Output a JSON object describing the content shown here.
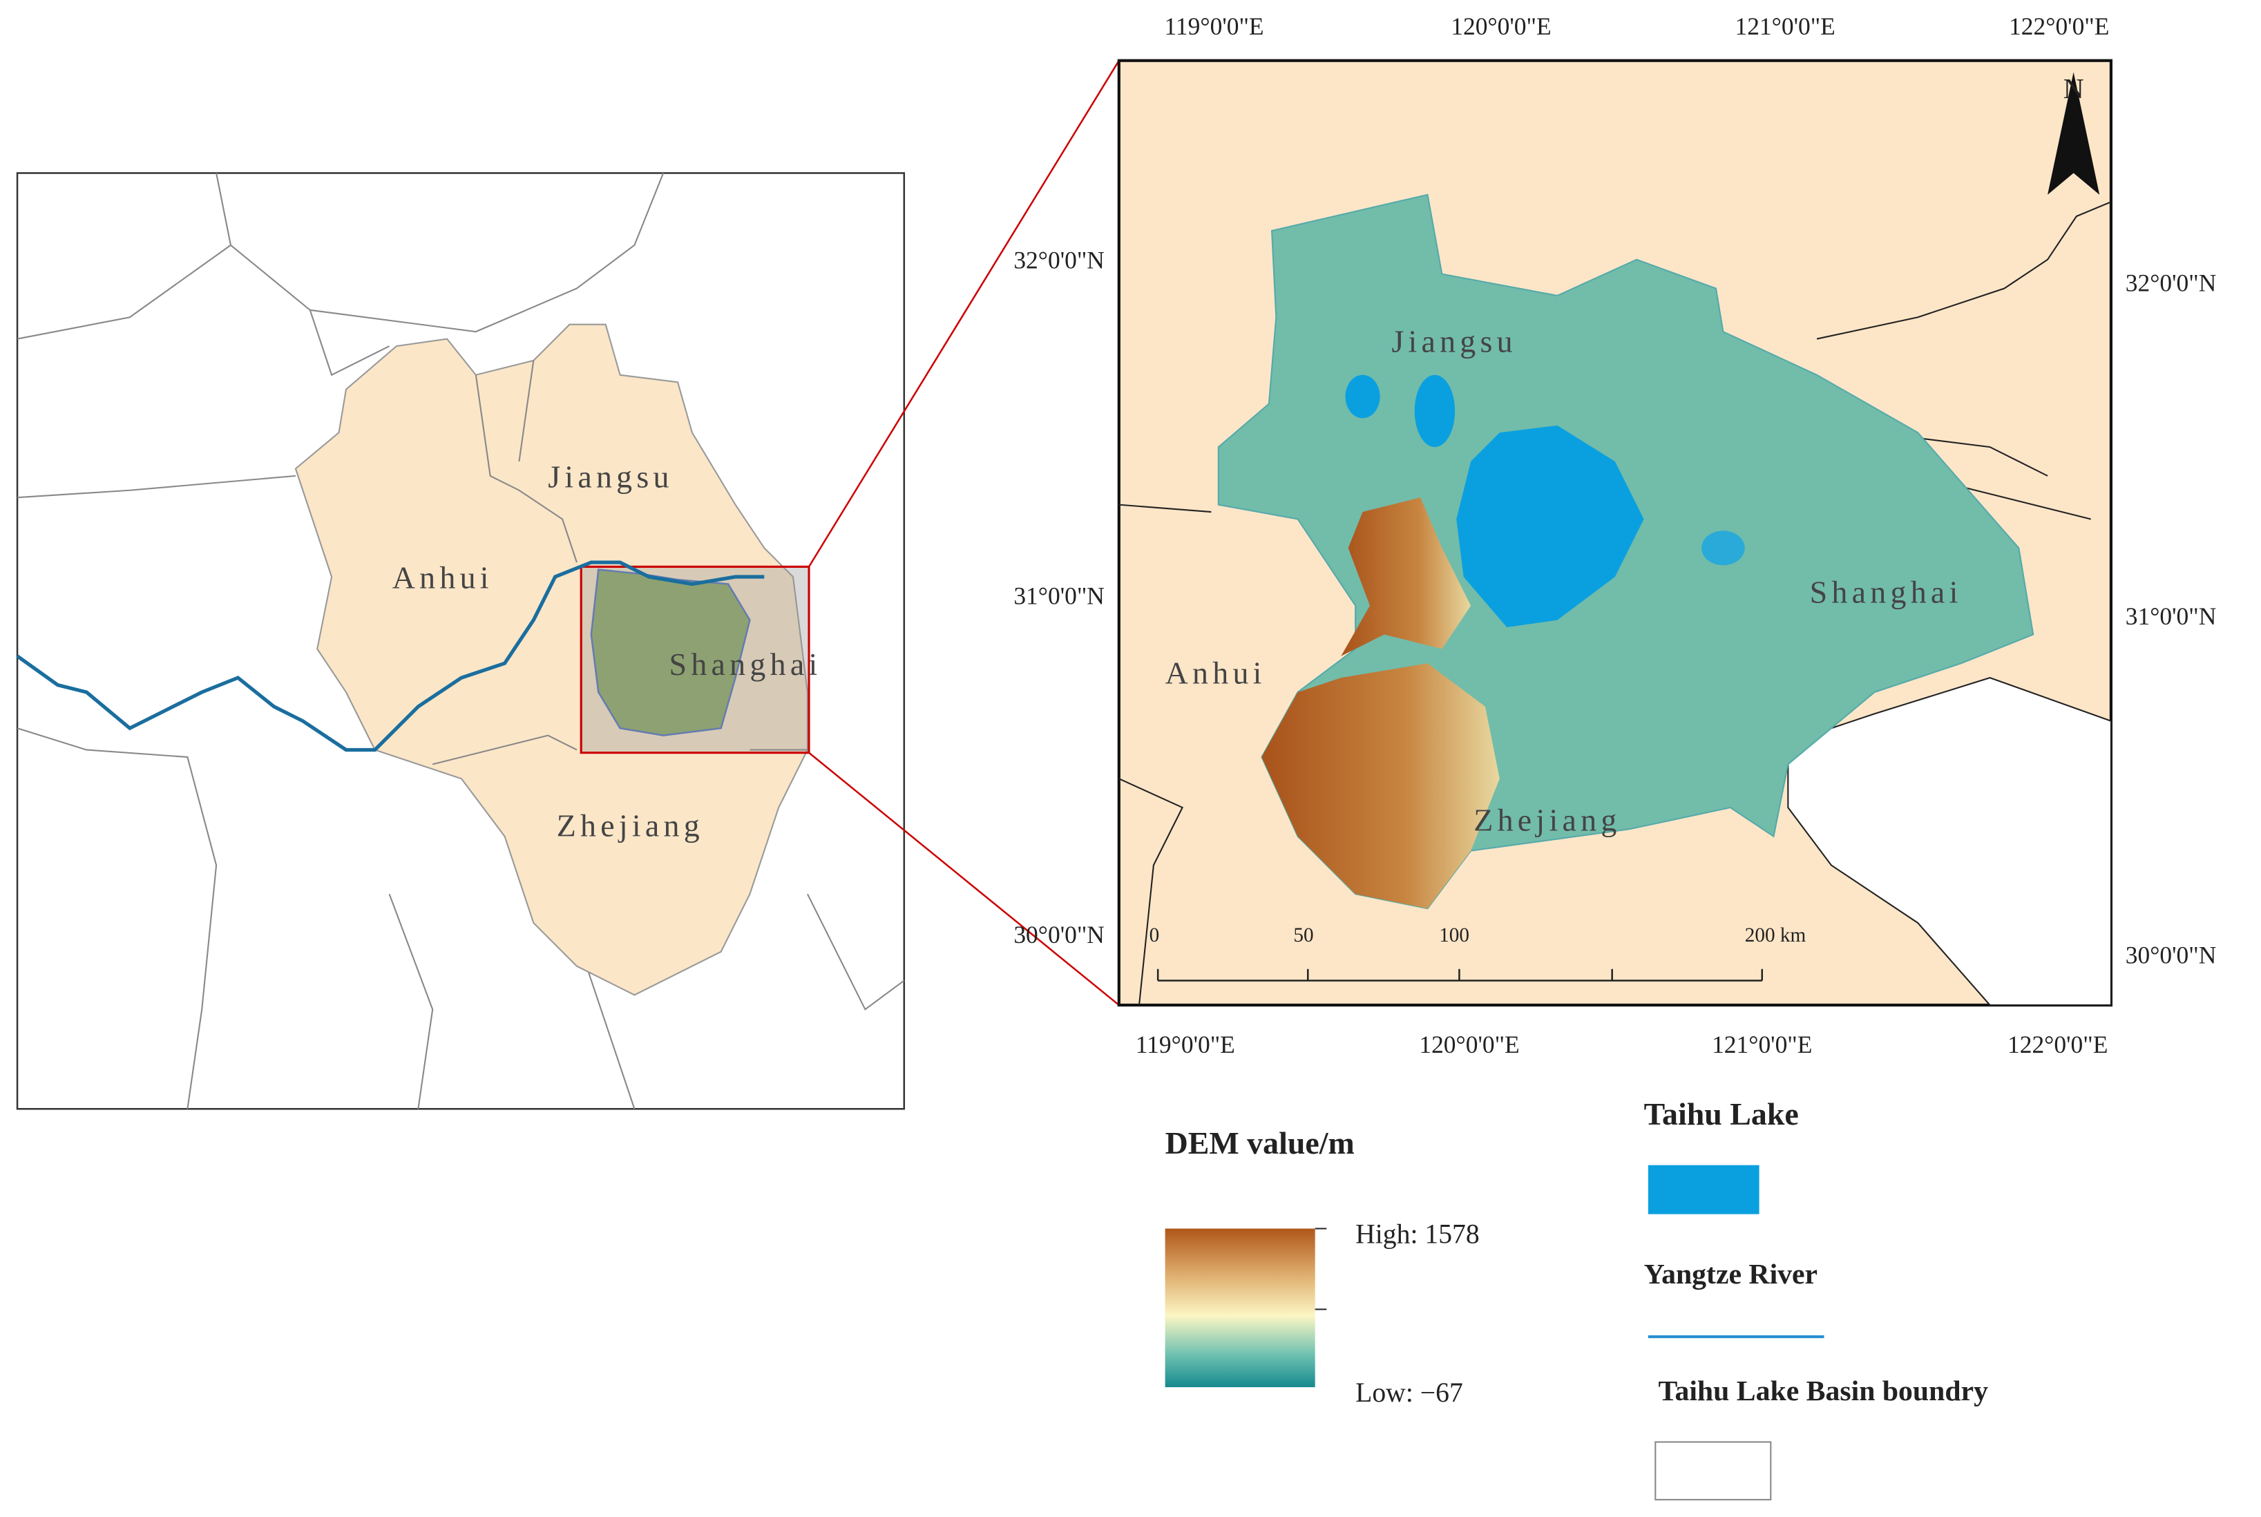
{
  "overview_map": {
    "labels": {
      "anhui": "Anhui",
      "jiangsu": "Jiangsu",
      "shanghai": "Shanghai",
      "zhejiang": "Zhejiang"
    }
  },
  "detail_map": {
    "top_ticks": [
      "119°0'0\"E",
      "120°0'0\"E",
      "121°0'0\"E",
      "122°0'0\"E"
    ],
    "bottom_ticks": [
      "119°0'0\"E",
      "120°0'0\"E",
      "121°0'0\"E",
      "122°0'0\"E"
    ],
    "left_ticks": [
      "32°0'0\"N",
      "31°0'0\"N",
      "30°0'0\"N"
    ],
    "right_ticks": [
      "32°0'0\"N",
      "31°0'0\"N",
      "30°0'0\"N"
    ],
    "labels": {
      "jiangsu": "Jiangsu",
      "anhui": "Anhui",
      "shanghai": "Shanghai",
      "zhejiang": "Zhejiang"
    },
    "north": "N",
    "scale_bar": [
      "0",
      "50",
      "100",
      "200 km"
    ]
  },
  "legend": {
    "dem_title": "DEM value/m",
    "high": "High: 1578",
    "low": "Low: −67",
    "taihu_lake": "Taihu Lake",
    "yangtze_river": "Yangtze River",
    "basin_boundary": "Taihu Lake Basin boundry"
  }
}
